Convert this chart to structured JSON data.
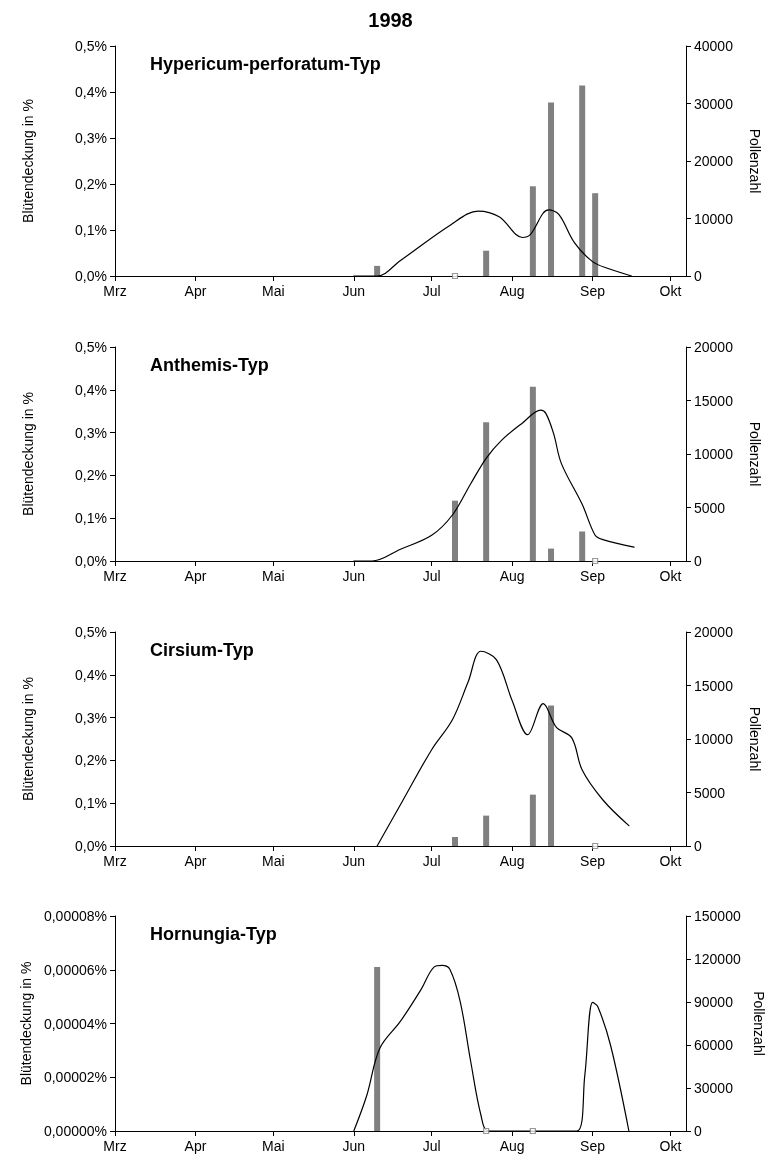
{
  "chart_data": [
    {
      "type": "bar",
      "title": "Hypericum-perforatum-Typ",
      "annotations": [
        "1998"
      ],
      "ylabel": "Blütendeckung in %",
      "y2label": "Pollenzahl",
      "xlim": [
        "1998-03-01",
        "1998-10-07"
      ],
      "xticks": [
        {
          "value": "1998-03-01",
          "label": "Mrz"
        },
        {
          "value": "1998-04-01",
          "label": "Apr"
        },
        {
          "value": "1998-05-01",
          "label": "Mai"
        },
        {
          "value": "1998-06-01",
          "label": "Jun"
        },
        {
          "value": "1998-07-01",
          "label": "Jul"
        },
        {
          "value": "1998-08-01",
          "label": "Aug"
        },
        {
          "value": "1998-09-01",
          "label": "Sep"
        },
        {
          "value": "1998-10-01",
          "label": "Okt"
        }
      ],
      "ylim": [
        0,
        0.5
      ],
      "yticks": [
        {
          "value": 0,
          "label": "0,0%"
        },
        {
          "value": 0.1,
          "label": "0,1%"
        },
        {
          "value": 0.2,
          "label": "0,2%"
        },
        {
          "value": 0.3,
          "label": "0,3%"
        },
        {
          "value": 0.4,
          "label": "0,4%"
        },
        {
          "value": 0.5,
          "label": "0,5%"
        }
      ],
      "y2lim": [
        0,
        40000
      ],
      "y2ticks": [
        0,
        10000,
        20000,
        30000,
        40000
      ],
      "series": [
        {
          "color": "#808080",
          "x": [
            "1998-06-10",
            "1998-07-22",
            "1998-08-09",
            "1998-08-16",
            "1998-08-28",
            "1998-09-02"
          ],
          "values": [
            0.022,
            0.055,
            0.195,
            0.377,
            0.414,
            0.18
          ]
        },
        {
          "type": "scatter",
          "marker": "square",
          "color": "#808080",
          "x": [
            "1998-07-10"
          ],
          "values": [
            0
          ]
        },
        {
          "type": "line",
          "axis": "y2",
          "color": "#000000",
          "x": [
            "1998-06-01",
            "1998-06-10",
            "1998-06-19",
            "1998-07-08",
            "1998-07-19",
            "1998-07-27",
            "1998-08-05",
            "1998-08-08",
            "1998-08-15",
            "1998-08-19",
            "1998-08-25",
            "1998-09-01",
            "1998-09-07",
            "1998-09-16"
          ],
          "values": [
            0,
            0,
            2700,
            8800,
            11300,
            10300,
            6700,
            7200,
            11500,
            10700,
            5800,
            2500,
            1300,
            0
          ]
        }
      ]
    },
    {
      "type": "bar",
      "title": "Anthemis-Typ",
      "ylabel": "Blütendeckung in %",
      "y2label": "Pollenzahl",
      "xlim": [
        "1998-03-01",
        "1998-10-07"
      ],
      "xticks": [
        {
          "value": "1998-03-01",
          "label": "Mrz"
        },
        {
          "value": "1998-04-01",
          "label": "Apr"
        },
        {
          "value": "1998-05-01",
          "label": "Mai"
        },
        {
          "value": "1998-06-01",
          "label": "Jun"
        },
        {
          "value": "1998-07-01",
          "label": "Jul"
        },
        {
          "value": "1998-08-01",
          "label": "Aug"
        },
        {
          "value": "1998-09-01",
          "label": "Sep"
        },
        {
          "value": "1998-10-01",
          "label": "Okt"
        }
      ],
      "ylim": [
        0,
        0.5
      ],
      "yticks": [
        {
          "value": 0,
          "label": "0,0%"
        },
        {
          "value": 0.1,
          "label": "0,1%"
        },
        {
          "value": 0.2,
          "label": "0,2%"
        },
        {
          "value": 0.3,
          "label": "0,3%"
        },
        {
          "value": 0.4,
          "label": "0,4%"
        },
        {
          "value": 0.5,
          "label": "0,5%"
        }
      ],
      "y2lim": [
        0,
        20000
      ],
      "y2ticks": [
        0,
        5000,
        10000,
        15000,
        20000
      ],
      "series": [
        {
          "color": "#808080",
          "x": [
            "1998-07-10",
            "1998-07-22",
            "1998-08-09",
            "1998-08-16",
            "1998-08-28"
          ],
          "values": [
            0.141,
            0.324,
            0.407,
            0.029,
            0.069
          ]
        },
        {
          "type": "scatter",
          "marker": "square",
          "color": "#808080",
          "x": [
            "1998-09-02"
          ],
          "values": [
            0
          ]
        },
        {
          "type": "line",
          "axis": "y2",
          "color": "#000000",
          "x": [
            "1998-06-01",
            "1998-06-08",
            "1998-06-19",
            "1998-07-01",
            "1998-07-09",
            "1998-07-16",
            "1998-07-22",
            "1998-07-28",
            "1998-08-05",
            "1998-08-12",
            "1998-08-14",
            "1998-08-17",
            "1998-08-20",
            "1998-08-28",
            "1998-09-02",
            "1998-09-05",
            "1998-09-17"
          ],
          "values": [
            0,
            0,
            1100,
            2400,
            4300,
            7200,
            9600,
            11300,
            12900,
            14100,
            13800,
            11900,
            9100,
            5300,
            2400,
            2000,
            1300
          ]
        }
      ]
    },
    {
      "type": "bar",
      "title": "Cirsium-Typ",
      "ylabel": "Blütendeckung in %",
      "y2label": "Pollenzahl",
      "xlim": [
        "1998-03-01",
        "1998-10-07"
      ],
      "xticks": [
        {
          "value": "1998-03-01",
          "label": "Mrz"
        },
        {
          "value": "1998-04-01",
          "label": "Apr"
        },
        {
          "value": "1998-05-01",
          "label": "Mai"
        },
        {
          "value": "1998-06-01",
          "label": "Jun"
        },
        {
          "value": "1998-07-01",
          "label": "Jul"
        },
        {
          "value": "1998-08-01",
          "label": "Aug"
        },
        {
          "value": "1998-09-01",
          "label": "Sep"
        },
        {
          "value": "1998-10-01",
          "label": "Okt"
        }
      ],
      "ylim": [
        0,
        0.5
      ],
      "yticks": [
        {
          "value": 0,
          "label": "0,0%"
        },
        {
          "value": 0.1,
          "label": "0,1%"
        },
        {
          "value": 0.2,
          "label": "0,2%"
        },
        {
          "value": 0.3,
          "label": "0,3%"
        },
        {
          "value": 0.4,
          "label": "0,4%"
        },
        {
          "value": 0.5,
          "label": "0,5%"
        }
      ],
      "y2lim": [
        0,
        20000
      ],
      "y2ticks": [
        0,
        5000,
        10000,
        15000,
        20000
      ],
      "series": [
        {
          "color": "#808080",
          "x": [
            "1998-07-10",
            "1998-07-22",
            "1998-08-09",
            "1998-08-16"
          ],
          "values": [
            0.021,
            0.071,
            0.12,
            0.328
          ]
        },
        {
          "type": "scatter",
          "marker": "square",
          "color": "#808080",
          "x": [
            "1998-09-02"
          ],
          "values": [
            0
          ]
        },
        {
          "type": "line",
          "axis": "y2",
          "color": "#000000",
          "x": [
            "1998-06-10",
            "1998-06-20",
            "1998-07-01",
            "1998-07-09",
            "1998-07-15",
            "1998-07-20",
            "1998-07-26",
            "1998-08-01",
            "1998-08-07",
            "1998-08-13",
            "1998-08-18",
            "1998-08-24",
            "1998-08-28",
            "1998-09-05",
            "1998-09-15"
          ],
          "values": [
            0,
            4300,
            9000,
            11800,
            15300,
            18200,
            17400,
            13600,
            10400,
            13300,
            11100,
            10100,
            7100,
            4300,
            1900
          ]
        }
      ]
    },
    {
      "type": "bar",
      "title": "Hornungia-Typ",
      "ylabel": "Blütendeckung in %",
      "y2label": "Pollenzahl",
      "xlim": [
        "1998-03-01",
        "1998-10-07"
      ],
      "xticks": [
        {
          "value": "1998-03-01",
          "label": "Mrz"
        },
        {
          "value": "1998-04-01",
          "label": "Apr"
        },
        {
          "value": "1998-05-01",
          "label": "Mai"
        },
        {
          "value": "1998-06-01",
          "label": "Jun"
        },
        {
          "value": "1998-07-01",
          "label": "Jul"
        },
        {
          "value": "1998-08-01",
          "label": "Aug"
        },
        {
          "value": "1998-09-01",
          "label": "Sep"
        },
        {
          "value": "1998-10-01",
          "label": "Okt"
        }
      ],
      "ylim": [
        0,
        8e-05
      ],
      "yticks": [
        {
          "value": 0,
          "label": "0,00000%"
        },
        {
          "value": 2e-05,
          "label": "0,00002%"
        },
        {
          "value": 4e-05,
          "label": "0,00004%"
        },
        {
          "value": 6e-05,
          "label": "0,00006%"
        },
        {
          "value": 8e-05,
          "label": "0,00008%"
        }
      ],
      "y2lim": [
        0,
        150000
      ],
      "y2ticks": [
        0,
        30000,
        60000,
        90000,
        120000,
        150000
      ],
      "series": [
        {
          "color": "#808080",
          "x": [
            "1998-06-10"
          ],
          "values": [
            6.1e-05
          ]
        },
        {
          "type": "scatter",
          "marker": "square",
          "color": "#808080",
          "x": [
            "1998-07-22",
            "1998-08-09"
          ],
          "values": [
            0,
            0
          ]
        },
        {
          "type": "line",
          "axis": "y2",
          "color": "#000000",
          "x": [
            "1998-06-01",
            "1998-06-06",
            "1998-06-11",
            "1998-06-19",
            "1998-06-27",
            "1998-07-02",
            "1998-07-05",
            "1998-07-08",
            "1998-07-12",
            "1998-07-16",
            "1998-07-20",
            "1998-07-23",
            "1998-08-26",
            "1998-08-29",
            "1998-09-01",
            "1998-09-03",
            "1998-09-08",
            "1998-09-15"
          ],
          "values": [
            0,
            24800,
            57600,
            76600,
            99000,
            114500,
            115500,
            112800,
            90300,
            49000,
            11000,
            0,
            0,
            38600,
            89700,
            86900,
            59300,
            0
          ]
        }
      ]
    }
  ]
}
